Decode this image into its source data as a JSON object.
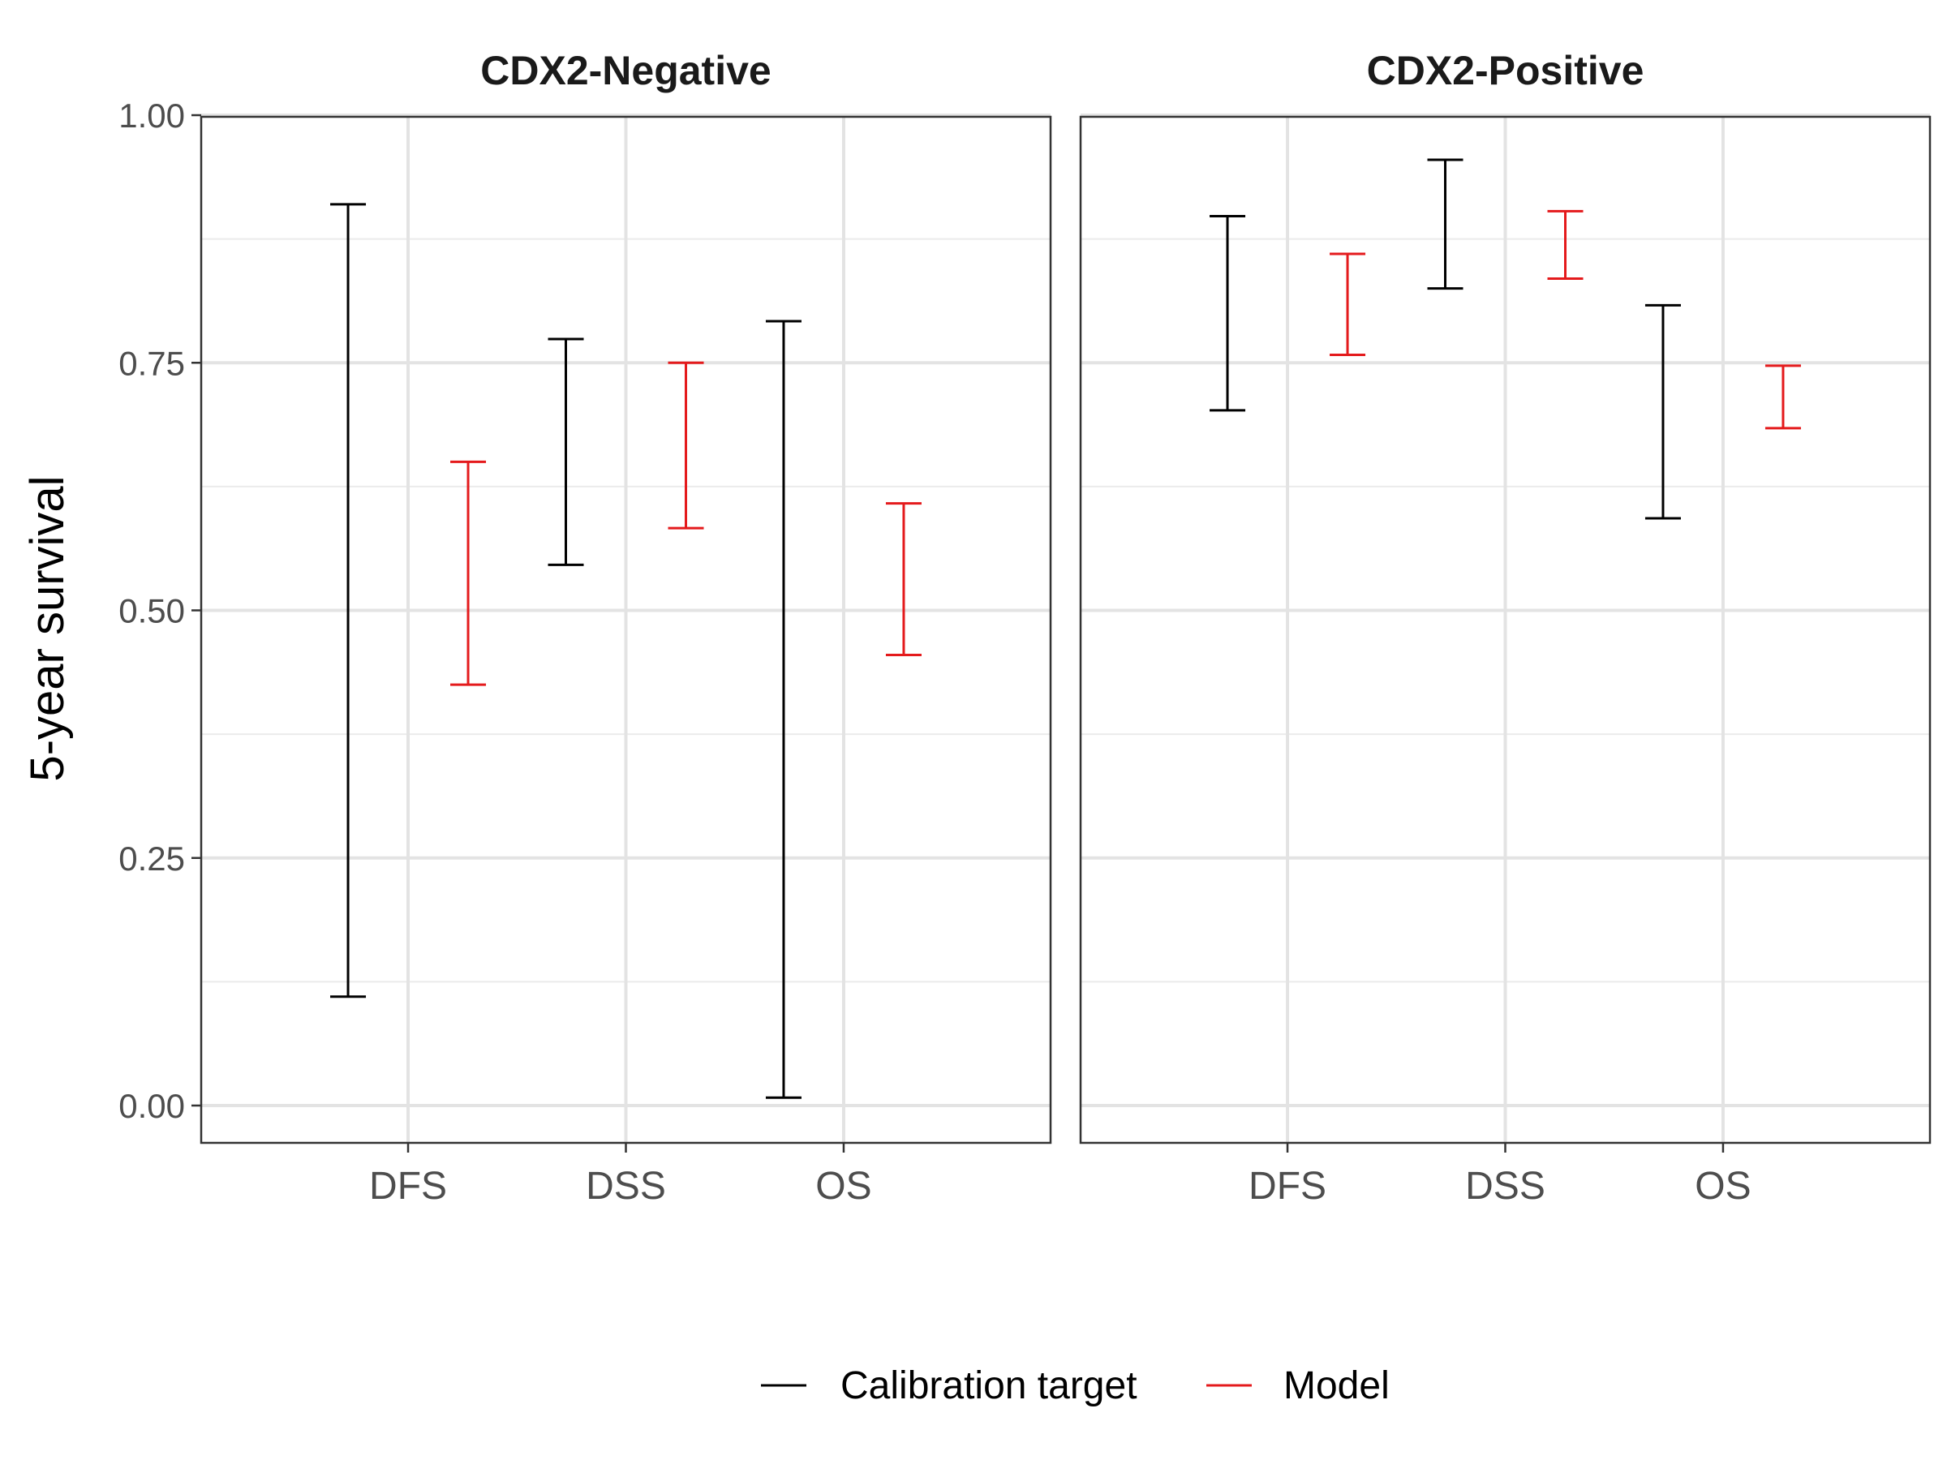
{
  "chart_data": {
    "type": "errorbar",
    "ylabel": "5-year survival",
    "ylim": [
      -0.04,
      1.0
    ],
    "yticks": [
      0.0,
      0.25,
      0.5,
      0.75,
      1.0
    ],
    "ytick_labels": [
      "0.00",
      "0.25",
      "0.50",
      "0.75",
      "1.00"
    ],
    "categories": [
      "DFS",
      "DSS",
      "OS"
    ],
    "grid": true,
    "legend_position": "bottom",
    "series": [
      {
        "name": "Calibration target",
        "color": "#000000"
      },
      {
        "name": "Model",
        "color": "#e41a1c"
      }
    ],
    "panels": [
      {
        "title": "CDX2-Negative",
        "bars": {
          "Calibration target": [
            {
              "category": "DFS",
              "low": 0.11,
              "high": 0.91
            },
            {
              "category": "DSS",
              "low": 0.546,
              "high": 0.774
            },
            {
              "category": "OS",
              "low": 0.008,
              "high": 0.792
            }
          ],
          "Model": [
            {
              "category": "DFS",
              "low": 0.425,
              "high": 0.65
            },
            {
              "category": "DSS",
              "low": 0.583,
              "high": 0.75
            },
            {
              "category": "OS",
              "low": 0.455,
              "high": 0.608
            }
          ]
        }
      },
      {
        "title": "CDX2-Positive",
        "bars": {
          "Calibration target": [
            {
              "category": "DFS",
              "low": 0.702,
              "high": 0.898
            },
            {
              "category": "DSS",
              "low": 0.825,
              "high": 0.955
            },
            {
              "category": "OS",
              "low": 0.593,
              "high": 0.808
            }
          ],
          "Model": [
            {
              "category": "DFS",
              "low": 0.758,
              "high": 0.86
            },
            {
              "category": "DSS",
              "low": 0.835,
              "high": 0.903
            },
            {
              "category": "OS",
              "low": 0.684,
              "high": 0.747
            }
          ]
        }
      }
    ]
  }
}
